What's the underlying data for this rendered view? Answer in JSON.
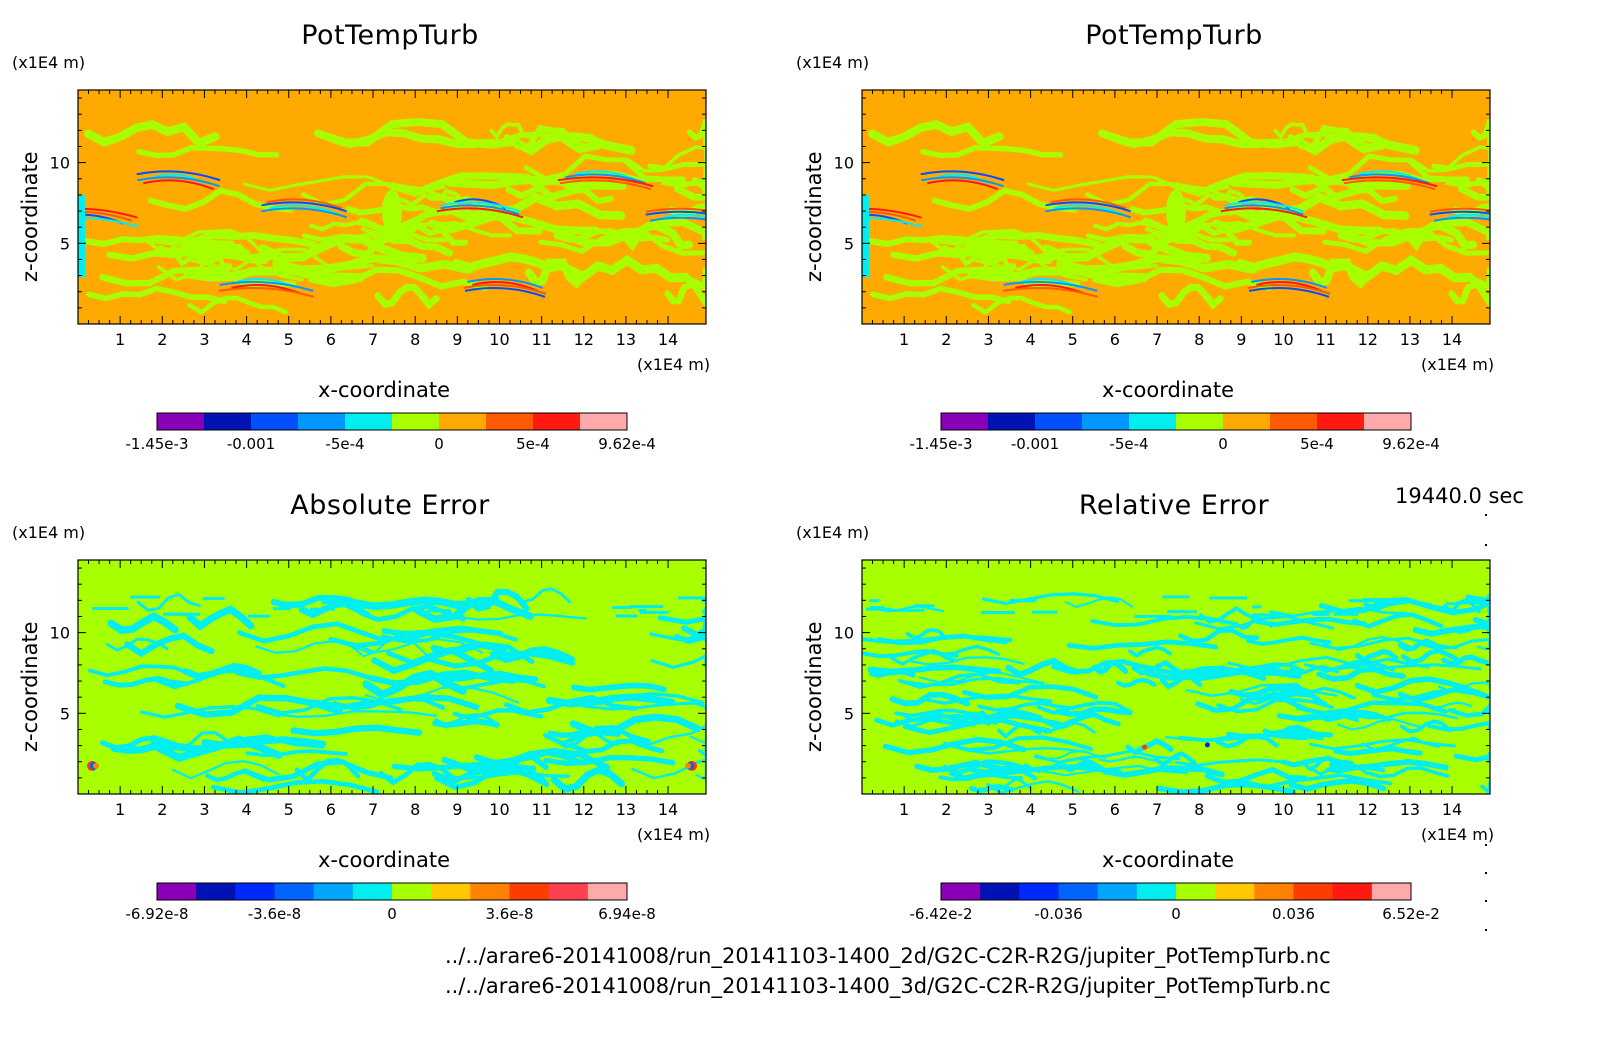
{
  "panels": [
    {
      "title": "PotTempTurb",
      "y_unit": "(x1E4 m)",
      "x_unit": "(x1E4 m)",
      "xlabel": "x-coordinate",
      "ylabel": "z-coordinate",
      "background": "#ffaa00",
      "pattern": "field",
      "colorbar": {
        "colors": [
          "#8a00b8",
          "#0012b4",
          "#0050ff",
          "#0098ff",
          "#00eeee",
          "#a8ff00",
          "#ffaa00",
          "#ff5a00",
          "#ff1a10",
          "#ffaaaa"
        ],
        "tick_labels": [
          "-1.45e-3",
          "-0.001",
          "-5e-4",
          "0",
          "5e-4",
          "9.62e-4"
        ]
      }
    },
    {
      "title": "PotTempTurb",
      "y_unit": "(x1E4 m)",
      "x_unit": "(x1E4 m)",
      "xlabel": "x-coordinate",
      "ylabel": "z-coordinate",
      "background": "#ffaa00",
      "pattern": "field",
      "colorbar": {
        "colors": [
          "#8a00b8",
          "#0012b4",
          "#0050ff",
          "#0098ff",
          "#00eeee",
          "#a8ff00",
          "#ffaa00",
          "#ff5a00",
          "#ff1a10",
          "#ffaaaa"
        ],
        "tick_labels": [
          "-1.45e-3",
          "-0.001",
          "-5e-4",
          "0",
          "5e-4",
          "9.62e-4"
        ]
      }
    },
    {
      "title": "Absolute Error",
      "y_unit": "(x1E4 m)",
      "x_unit": "(x1E4 m)",
      "xlabel": "x-coordinate",
      "ylabel": "z-coordinate",
      "background": "#a8ff00",
      "pattern": "abs",
      "colorbar": {
        "colors": [
          "#8a00b8",
          "#0012b4",
          "#0028ff",
          "#0064ff",
          "#00a6ff",
          "#00eeee",
          "#a8ff00",
          "#ffc800",
          "#ff8200",
          "#ff3c00",
          "#ff4050",
          "#ffaaaa"
        ],
        "tick_labels": [
          "-6.92e-8",
          "-3.6e-8",
          "0",
          "3.6e-8",
          "6.94e-8"
        ]
      }
    },
    {
      "title": "Relative Error",
      "y_unit": "(x1E4 m)",
      "x_unit": "(x1E4 m)",
      "xlabel": "x-coordinate",
      "ylabel": "z-coordinate",
      "background": "#a8ff00",
      "pattern": "rel",
      "colorbar": {
        "colors": [
          "#8a00b8",
          "#0012b4",
          "#0028ff",
          "#0064ff",
          "#00a6ff",
          "#00eeee",
          "#a8ff00",
          "#ffc800",
          "#ff8200",
          "#ff3c00",
          "#ff1a10",
          "#ffaaaa"
        ],
        "tick_labels": [
          "-6.42e-2",
          "-0.036",
          "0",
          "0.036",
          "6.52e-2"
        ]
      }
    }
  ],
  "chart_data": {
    "type": "heatmap",
    "x_ticks": [
      "1",
      "2",
      "3",
      "4",
      "5",
      "6",
      "7",
      "8",
      "9",
      "10",
      "11",
      "12",
      "13",
      "14"
    ],
    "y_ticks": [
      "5",
      "10"
    ],
    "xlim": [
      0,
      14.9
    ],
    "ylim": [
      0,
      14.5
    ],
    "x_tick_values": [
      1,
      2,
      3,
      4,
      5,
      6,
      7,
      8,
      9,
      10,
      11,
      12,
      13,
      14
    ],
    "y_tick_values": [
      5,
      10
    ]
  },
  "timestamp": "19440.0 sec",
  "paths": [
    "../../arare6-20141008/run_20141103-1400_2d/G2C-C2R-R2G/jupiter_PotTempTurb.nc",
    "../../arare6-20141008/run_20141103-1400_3d/G2C-C2R-R2G/jupiter_PotTempTurb.nc"
  ]
}
